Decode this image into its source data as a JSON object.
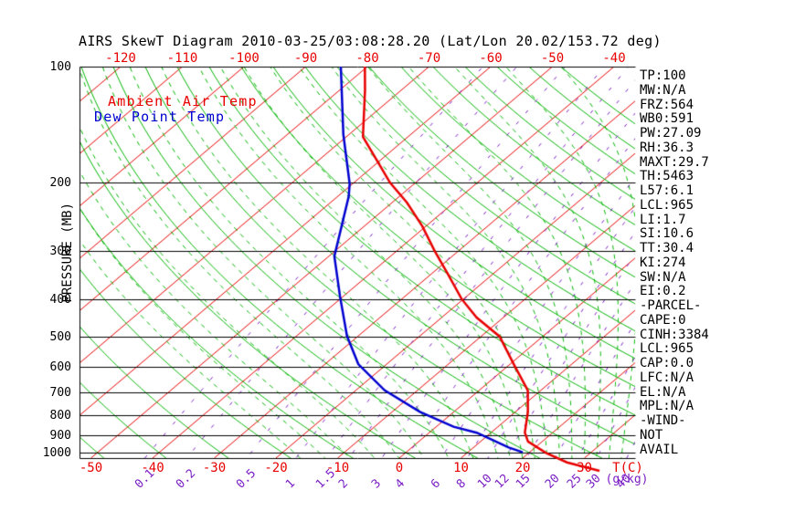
{
  "title": "AIRS SkewT Diagram 2010-03-25/03:08:28.20 (Lat/Lon 20.02/153.72 deg)",
  "colors": {
    "isotherm_red": "#e80000",
    "adiabat_green": "#00b400",
    "mixing_purple": "#7b1fc4",
    "grid_black": "#000000",
    "ambient_red": "#e80000",
    "dewpoint_blue": "#0000d0"
  },
  "legend": {
    "ambient": "Ambient Air Temp",
    "dew": "Dew Point Temp"
  },
  "left_axis": {
    "title": "PRESSURE (MB)",
    "ticks": [
      100,
      200,
      300,
      400,
      500,
      600,
      700,
      800,
      900,
      1000
    ]
  },
  "top_axis": {
    "ticks": [
      -120,
      -110,
      -100,
      -90,
      -80,
      -70,
      -60,
      -50,
      -40
    ]
  },
  "bottom_axis": {
    "ticks": [
      -50,
      -40,
      -30,
      -20,
      -10,
      0,
      10,
      20,
      30
    ],
    "unit": "T(C)"
  },
  "mixing_ratio": {
    "values": [
      0.1,
      0.2,
      0.5,
      1,
      1.5,
      2,
      3,
      4,
      6,
      8,
      10,
      12,
      15,
      20,
      25,
      30,
      40
    ],
    "unit": "(g/kg)"
  },
  "right_panel": {
    "items": [
      "TP:100",
      "MW:N/A",
      "FRZ:564",
      "WB0:591",
      "PW:27.09",
      "RH:36.3",
      "MAXT:29.7",
      "TH:5463",
      "L57:6.1",
      "LCL:965",
      "LI:1.7",
      "SI:10.6",
      "TT:30.4",
      "KI:274",
      "SW:N/A",
      "EI:0.2",
      "-PARCEL-",
      "CAPE:0",
      "CINH:3384",
      "LCL:965",
      "CAP:0.0",
      "LFC:N/A",
      "EL:N/A",
      "MPL:N/A",
      "-WIND-",
      "NOT",
      "AVAIL"
    ]
  },
  "chart_data": {
    "type": "line",
    "title": "AIRS SkewT Diagram 2010-03-25/03:08:28.20 (Lat/Lon 20.02/153.72 deg)",
    "y_axis": {
      "label": "PRESSURE (MB)",
      "scale": "log",
      "range": [
        100,
        1034
      ],
      "gridlines": [
        100,
        200,
        300,
        400,
        500,
        600,
        700,
        800,
        900,
        1000
      ]
    },
    "x_axis": {
      "label": "T(C)",
      "bottom_tick_range": [
        -50,
        30
      ],
      "top_tick_range": [
        -120,
        -40
      ],
      "skew": "45deg"
    },
    "isotherms_c": {
      "from": -120,
      "to": 40,
      "step": 10
    },
    "dry_adiabats_c": {
      "from": -50,
      "to": 160,
      "step": 10
    },
    "moist_adiabats_start_c": [
      -16,
      -12,
      -8,
      -4,
      0,
      4,
      8,
      12,
      16,
      18,
      20,
      22,
      24,
      26,
      28,
      30,
      32,
      34,
      36
    ],
    "mixing_ratio_g_kg": [
      0.1,
      0.2,
      0.5,
      1,
      1.5,
      2,
      3,
      4,
      6,
      8,
      10,
      12,
      15,
      20,
      25,
      30,
      40
    ],
    "series": [
      {
        "name": "Ambient Air Temp",
        "color": "#e80000",
        "points_pressure_mb_temp_c": [
          [
            100,
            -80.4
          ],
          [
            115,
            -75.9
          ],
          [
            152,
            -67.3
          ],
          [
            200,
            -54.1
          ],
          [
            225,
            -47.6
          ],
          [
            259,
            -40.6
          ],
          [
            300,
            -33.9
          ],
          [
            344,
            -27.4
          ],
          [
            400,
            -20.3
          ],
          [
            447,
            -14.3
          ],
          [
            500,
            -7.0
          ],
          [
            590,
            0.6
          ],
          [
            690,
            7.9
          ],
          [
            784,
            12.0
          ],
          [
            888,
            15.5
          ],
          [
            936,
            17.7
          ],
          [
            1002,
            22.8
          ],
          [
            1060,
            28.0
          ],
          [
            1115,
            34.9
          ]
        ]
      },
      {
        "name": "Dew Point Temp",
        "color": "#0000d0",
        "points_pressure_mb_temp_c": [
          [
            100,
            -84.3
          ],
          [
            150,
            -70.9
          ],
          [
            201,
            -60.5
          ],
          [
            217,
            -58.2
          ],
          [
            310,
            -49.1
          ],
          [
            394,
            -40.5
          ],
          [
            499,
            -31.8
          ],
          [
            590,
            -24.6
          ],
          [
            690,
            -15.3
          ],
          [
            784,
            -5.5
          ],
          [
            857,
            2.8
          ],
          [
            888,
            7.7
          ],
          [
            970,
            15.7
          ],
          [
            998,
            18.9
          ]
        ]
      }
    ]
  }
}
